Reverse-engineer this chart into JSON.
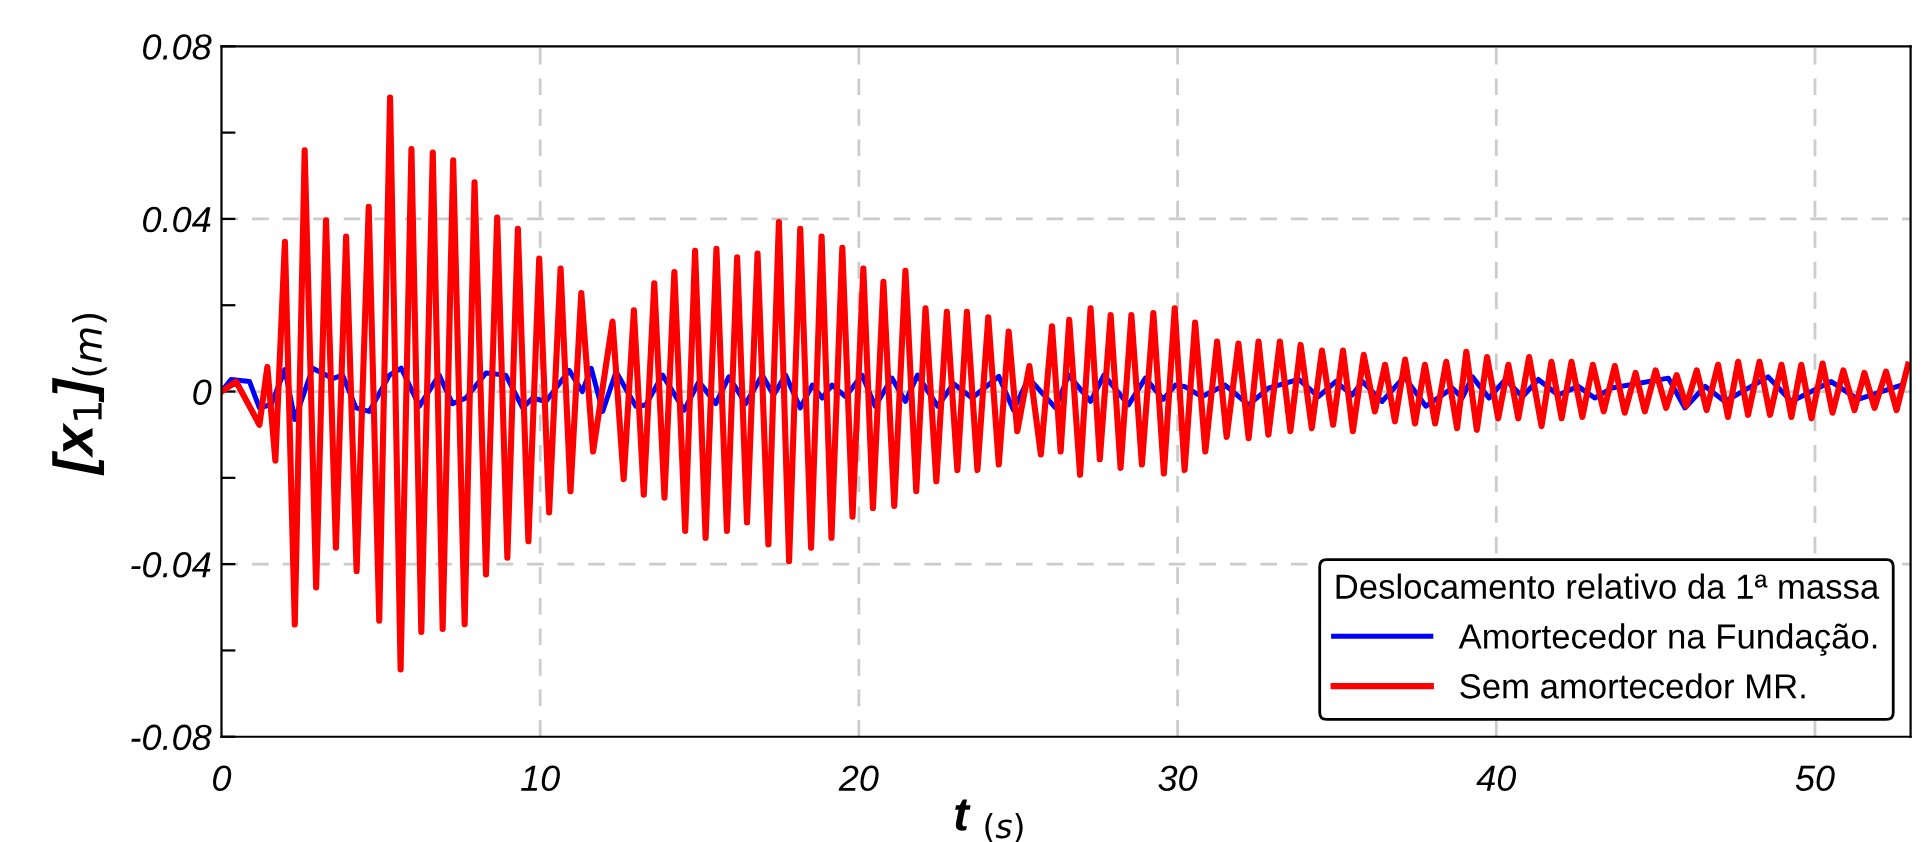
{
  "chart_data": {
    "type": "line",
    "xlabel": "t $_{(s)}$",
    "ylabel": "[x$_{1}$]$_{(m)}$",
    "legend_title": "Deslocamento relativo da 1ª massa",
    "xlim": [
      0,
      53
    ],
    "ylim": [
      -0.08,
      0.08
    ],
    "xticks": [
      0,
      10,
      20,
      30,
      40,
      50
    ],
    "yticks": [
      {
        "value": -0.08,
        "label": "-0.08"
      },
      {
        "value": -0.06,
        "label": null
      },
      {
        "value": -0.04,
        "label": "-0.04"
      },
      {
        "value": -0.02,
        "label": null
      },
      0,
      {
        "value": 0.02,
        "label": null
      },
      0.04,
      {
        "value": 0.06,
        "label": null
      },
      0.08
    ],
    "grid": true,
    "legend": "bottom right",
    "line_style": "solid",
    "marker": "none",
    "series": [
      {
        "name": "Amortecedor na Fundação.",
        "color": "#0000ff",
        "x": [
          0,
          0.3,
          0.88,
          1.19,
          1.56,
          1.99,
          2.3,
          2.86,
          3.49,
          3.8,
          4.22,
          4.64,
          5.27,
          5.64,
          6.21,
          6.83,
          7.25,
          7.67,
          8.3,
          8.92,
          9.45,
          9.76,
          10.18,
          10.91,
          11.32,
          11.6,
          11.96,
          12.38,
          13.0,
          13.31,
          13.84,
          14.52,
          14.98,
          15.51,
          15.92,
          16.45,
          16.97,
          17.32,
          17.7,
          18.16,
          18.54,
          18.85,
          19.16,
          19.58,
          20.1,
          20.51,
          21.04,
          21.46,
          21.84,
          22.47,
          22.97,
          23.55,
          24.39,
          24.85,
          25.33,
          26.17,
          26.58,
          27.27,
          27.69,
          28.46,
          28.99,
          29.55,
          29.93,
          30.24,
          30.76,
          31.49,
          32.23,
          32.85,
          33.8,
          34.42,
          34.96,
          35.48,
          35.8,
          36.42,
          37.11,
          37.79,
          38.62,
          38.93,
          39.25,
          39.77,
          40.29,
          40.82,
          41.32,
          41.94,
          42.57,
          43.09,
          43.62,
          45.4,
          45.92,
          46.55,
          47.17,
          48.53,
          49.26,
          50.51,
          51.35,
          52.71
        ],
        "values": [
          0,
          0.0028,
          0.0023,
          -0.0038,
          -0.003,
          0.0051,
          -0.0065,
          0.0054,
          0.003,
          0.0038,
          -0.0038,
          -0.0046,
          0.0038,
          0.0054,
          -0.0034,
          0.0038,
          -0.0028,
          -0.0015,
          0.0043,
          0.0038,
          -0.0038,
          -0.0015,
          -0.0023,
          0.0049,
          0,
          0.0054,
          -0.0046,
          0.0046,
          -0.0034,
          -0.0031,
          0.0038,
          -0.0043,
          0.0023,
          -0.0028,
          0.0034,
          -0.0028,
          0.0038,
          -0.0008,
          0.0038,
          -0.0038,
          0.0015,
          -0.0015,
          0.0015,
          -0.0012,
          0.0038,
          -0.0034,
          0.0031,
          -0.0023,
          0.0038,
          -0.0034,
          0.0018,
          -0.0015,
          0.0035,
          -0.0043,
          0.0031,
          -0.0038,
          0.0038,
          -0.0023,
          0.0038,
          -0.0031,
          0.0031,
          -0.0018,
          0.0015,
          0.0011,
          -0.0012,
          0.0015,
          -0.0031,
          0.0008,
          0.0028,
          -0.0012,
          0.0023,
          -0.0008,
          0.0023,
          -0.0023,
          0.0034,
          -0.0034,
          0.0008,
          -0.0015,
          0.0034,
          -0.0015,
          0.0028,
          -0.0012,
          0.0028,
          -0.0008,
          0.0012,
          -0.0015,
          0.0008,
          0.0031,
          -0.0038,
          0.0012,
          -0.0023,
          0.0034,
          -0.0023,
          0.0023,
          -0.0018,
          0.0015
        ]
      },
      {
        "name": "Sem amortecedor MR.",
        "color": "#ff0000",
        "x": [
          0,
          0.46,
          1.19,
          1.44,
          1.69,
          1.99,
          2.3,
          2.61,
          2.97,
          3.28,
          3.59,
          3.91,
          4.24,
          4.62,
          4.95,
          5.29,
          5.62,
          5.96,
          6.27,
          6.63,
          6.94,
          7.27,
          7.63,
          7.94,
          8.3,
          8.65,
          8.97,
          9.3,
          9.63,
          9.97,
          10.28,
          10.64,
          10.95,
          11.29,
          11.66,
          12.27,
          12.62,
          12.94,
          13.25,
          13.58,
          13.9,
          14.21,
          14.55,
          14.86,
          15.19,
          15.53,
          15.86,
          16.18,
          16.49,
          16.82,
          17.16,
          17.49,
          17.81,
          18.16,
          18.5,
          18.83,
          19.14,
          19.48,
          19.8,
          20.14,
          20.44,
          20.77,
          21.11,
          21.46,
          21.8,
          22.09,
          22.43,
          22.76,
          23.09,
          23.39,
          23.72,
          24.06,
          24.39,
          24.7,
          24.97,
          25.35,
          25.71,
          26.06,
          26.33,
          26.6,
          26.94,
          27.27,
          27.56,
          27.9,
          28.21,
          28.55,
          28.88,
          29.24,
          29.57,
          29.91,
          30.22,
          30.55,
          30.87,
          31.24,
          31.54,
          31.91,
          32.23,
          32.54,
          32.85,
          33.21,
          33.54,
          33.86,
          34.21,
          34.53,
          34.88,
          35.19,
          35.5,
          35.84,
          36.19,
          36.51,
          36.82,
          37.14,
          37.45,
          37.76,
          38.08,
          38.43,
          38.77,
          39.06,
          39.39,
          39.71,
          40.06,
          40.38,
          40.69,
          41.03,
          41.42,
          41.73,
          42.05,
          42.36,
          42.7,
          43.03,
          43.37,
          43.72,
          44.03,
          44.37,
          44.66,
          45.0,
          45.33,
          45.66,
          45.96,
          46.29,
          46.6,
          46.96,
          47.27,
          47.59,
          47.9,
          48.26,
          48.59,
          48.95,
          49.26,
          49.57,
          49.89,
          50.24,
          50.55,
          50.89,
          51.24,
          51.55,
          51.87,
          52.23,
          52.56,
          52.92
        ],
        "values": [
          0,
          0.0023,
          -0.0077,
          0.0057,
          -0.016,
          0.0347,
          -0.054,
          0.0559,
          -0.0454,
          0.0397,
          -0.0362,
          0.0359,
          -0.0416,
          0.0428,
          -0.0531,
          0.0681,
          -0.0644,
          0.0562,
          -0.0557,
          0.0554,
          -0.055,
          0.0536,
          -0.0539,
          0.0485,
          -0.0424,
          0.0403,
          -0.0385,
          0.0377,
          -0.0347,
          0.0308,
          -0.028,
          0.0285,
          -0.0231,
          0.0228,
          -0.0139,
          0.0162,
          -0.0203,
          0.0188,
          -0.0239,
          0.0251,
          -0.0246,
          0.0277,
          -0.0323,
          0.0326,
          -0.0339,
          0.0331,
          -0.0323,
          0.0311,
          -0.0303,
          0.032,
          -0.0354,
          0.0393,
          -0.0393,
          0.0377,
          -0.0362,
          0.0359,
          -0.0339,
          0.0333,
          -0.029,
          0.0285,
          -0.027,
          0.0254,
          -0.0265,
          0.028,
          -0.0231,
          0.0193,
          -0.0208,
          0.0185,
          -0.0182,
          0.0185,
          -0.0182,
          0.0172,
          -0.0169,
          0.0139,
          -0.0092,
          0.0059,
          -0.0146,
          0.0151,
          -0.0139,
          0.0166,
          -0.0193,
          0.0193,
          -0.0157,
          0.0177,
          -0.0177,
          0.0177,
          -0.0169,
          0.0182,
          -0.019,
          0.0193,
          -0.0182,
          0.016,
          -0.0139,
          0.0116,
          -0.0105,
          0.0111,
          -0.0108,
          0.0116,
          -0.01,
          0.0116,
          -0.0092,
          0.0108,
          -0.0085,
          0.0095,
          -0.0077,
          0.0095,
          -0.0092,
          0.0085,
          -0.0046,
          0.0062,
          -0.0069,
          0.0074,
          -0.0074,
          0.0062,
          -0.0074,
          0.0069,
          -0.0085,
          0.0092,
          -0.0089,
          0.008,
          -0.0062,
          0.0062,
          -0.0062,
          0.008,
          -0.008,
          0.0069,
          -0.0062,
          0.0069,
          -0.0059,
          0.0062,
          -0.0046,
          0.0059,
          -0.0049,
          0.0043,
          -0.0046,
          0.0049,
          -0.0038,
          0.0038,
          -0.0034,
          0.0049,
          -0.0043,
          0.0062,
          -0.0059,
          0.0069,
          -0.0054,
          0.0069,
          -0.0054,
          0.0062,
          -0.0059,
          0.0062,
          -0.0062,
          0.0065,
          -0.0049,
          0.0049,
          -0.0043,
          0.0043,
          -0.0038,
          0.0046,
          -0.0043,
          0.0062
        ]
      }
    ]
  }
}
